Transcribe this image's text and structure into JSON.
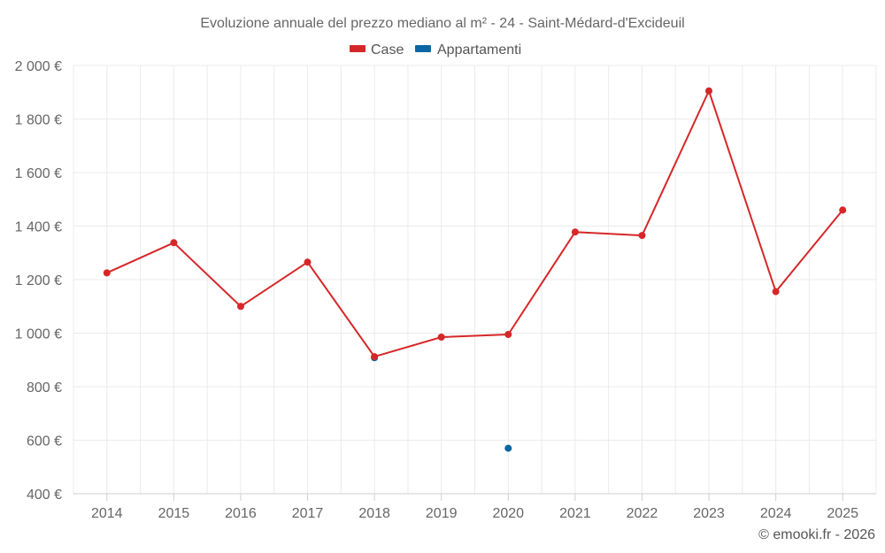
{
  "chart_data": {
    "type": "line",
    "title": "Evoluzione annuale del prezzo mediano al m² - 24 - Saint-Médard-d'Excideuil",
    "categories": [
      "2014",
      "2015",
      "2016",
      "2017",
      "2018",
      "2019",
      "2020",
      "2021",
      "2022",
      "2023",
      "2024",
      "2025"
    ],
    "series": [
      {
        "name": "Case",
        "color": "#d62728",
        "values": [
          1225,
          1338,
          1100,
          1265,
          912,
          985,
          995,
          1378,
          1365,
          1905,
          1155,
          1460
        ]
      },
      {
        "name": "Appartamenti",
        "color": "#0a67a3",
        "values": [
          null,
          null,
          null,
          null,
          908,
          null,
          570,
          null,
          null,
          null,
          null,
          null
        ]
      }
    ],
    "ylim": [
      400,
      2000
    ],
    "yticks": [
      400,
      600,
      800,
      1000,
      1200,
      1400,
      1600,
      1800,
      2000
    ],
    "ytick_labels": [
      "400 €",
      "600 €",
      "800 €",
      "1 000 €",
      "1 200 €",
      "1 400 €",
      "1 600 €",
      "1 800 €",
      "2 000 €"
    ],
    "xlabel": "",
    "ylabel": "",
    "legend_position": "top-center",
    "grid": true
  },
  "credit": "© emooki.fr - 2026"
}
